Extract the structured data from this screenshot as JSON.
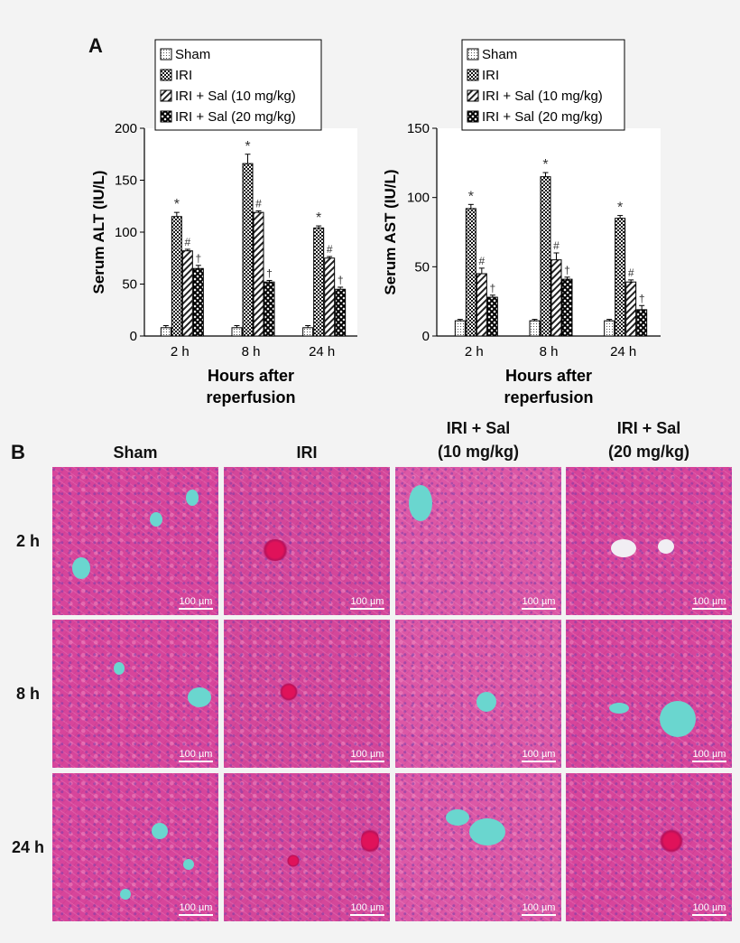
{
  "panel_labels": {
    "a": "A",
    "b": "B"
  },
  "chart_data": [
    {
      "type": "bar",
      "categories": [
        "2 h",
        "8 h",
        "24 h"
      ],
      "series": [
        {
          "name": "Sham",
          "values": [
            8,
            8,
            8
          ],
          "errors": [
            2,
            2,
            2
          ],
          "annotations": [
            "",
            "",
            ""
          ]
        },
        {
          "name": "IRI",
          "values": [
            115,
            166,
            104
          ],
          "errors": [
            4,
            9,
            2
          ],
          "annotations": [
            "*",
            "*",
            "*"
          ]
        },
        {
          "name": "IRI + Sal (10 mg/kg)",
          "values": [
            82,
            119,
            75
          ],
          "errors": [
            1.5,
            1.5,
            1.5
          ],
          "annotations": [
            "#",
            "#",
            "#"
          ]
        },
        {
          "name": "IRI + Sal (20 mg/kg)",
          "values": [
            65,
            52,
            45
          ],
          "errors": [
            3,
            1.5,
            2
          ],
          "annotations": [
            "†",
            "†",
            "†"
          ]
        }
      ],
      "xlabel": "Hours after\nreperfusion",
      "ylabel": "Serum ALT (IU/L)",
      "ylim": [
        0,
        200
      ],
      "yticks": [
        0,
        50,
        100,
        150,
        200
      ],
      "legend": "top"
    },
    {
      "type": "bar",
      "categories": [
        "2 h",
        "8 h",
        "24 h"
      ],
      "series": [
        {
          "name": "Sham",
          "values": [
            11,
            11,
            11
          ],
          "errors": [
            1,
            1,
            1
          ],
          "annotations": [
            "",
            "",
            ""
          ]
        },
        {
          "name": "IRI",
          "values": [
            92,
            115,
            85
          ],
          "errors": [
            3,
            3,
            2
          ],
          "annotations": [
            "*",
            "*",
            "*"
          ]
        },
        {
          "name": "IRI + Sal (10 mg/kg)",
          "values": [
            45,
            55,
            39
          ],
          "errors": [
            4,
            5,
            1.5
          ],
          "annotations": [
            "#",
            "#",
            "#"
          ]
        },
        {
          "name": "IRI + Sal (20 mg/kg)",
          "values": [
            28,
            41,
            19
          ],
          "errors": [
            1.5,
            1.5,
            3
          ],
          "annotations": [
            "†",
            "†",
            "†"
          ]
        }
      ],
      "xlabel": "Hours after\nreperfusion",
      "ylabel": "Serum AST (IU/L)",
      "ylim": [
        0,
        150
      ],
      "yticks": [
        0,
        50,
        100,
        150
      ],
      "legend": "top"
    }
  ],
  "micrographs": {
    "columns": [
      "Sham",
      "IRI",
      "IRI + Sal\n(10 mg/kg)",
      "IRI + Sal\n(20 mg/kg)"
    ],
    "rows": [
      "2 h",
      "8 h",
      "24 h"
    ],
    "scale_bar_label": "100 µm"
  }
}
